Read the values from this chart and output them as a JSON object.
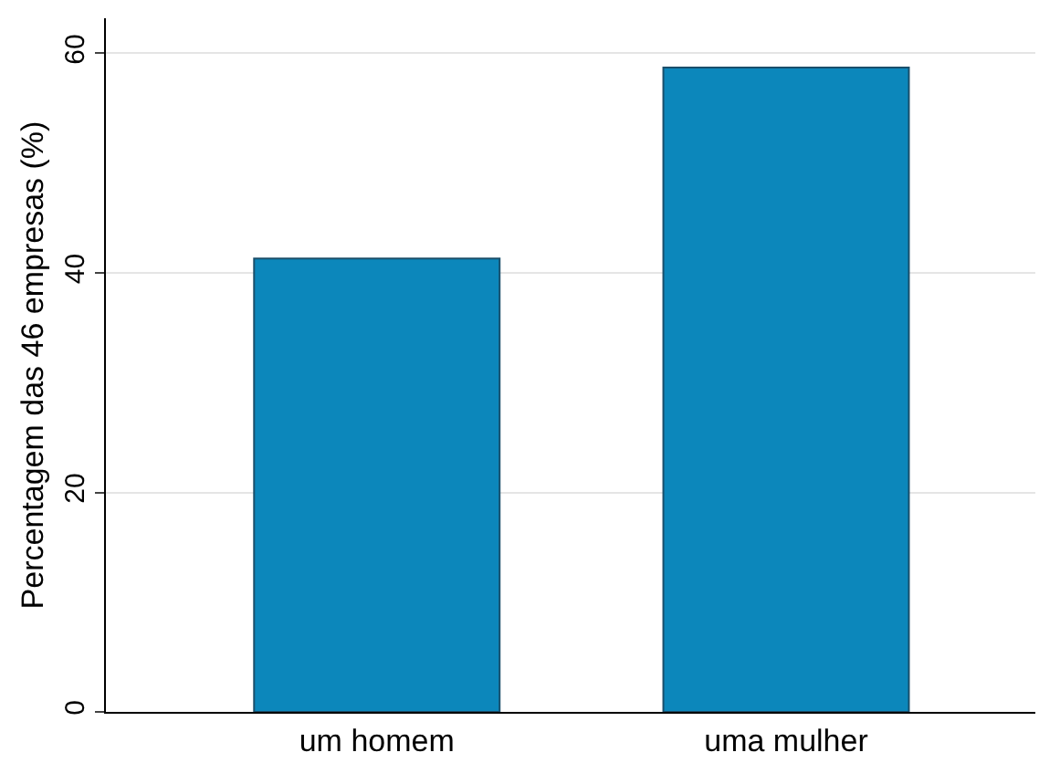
{
  "chart_data": {
    "type": "bar",
    "ylabel": "Percentagem das 46 empresas (%)",
    "categories": [
      "um homem",
      "uma mulher"
    ],
    "values": [
      41.3,
      58.7
    ],
    "color": "#0c87bb",
    "ylim": [
      0,
      63.2
    ],
    "yticks": [
      0,
      20,
      40,
      60
    ],
    "grid": "y"
  }
}
